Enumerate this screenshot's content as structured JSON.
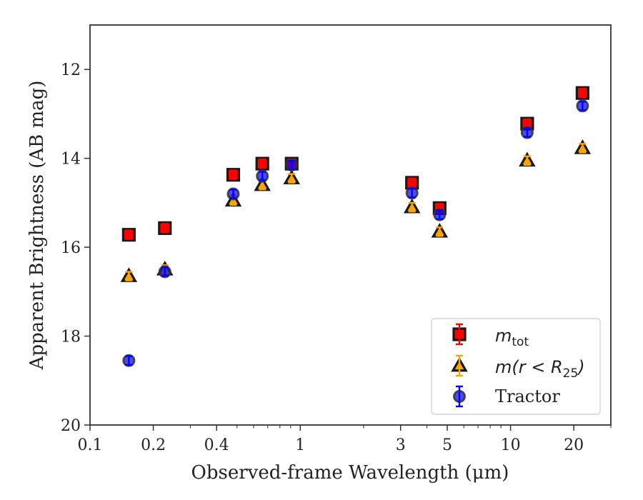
{
  "chart_data": {
    "type": "scatter",
    "title": "",
    "xlabel": "Observed-frame Wavelength (μm)",
    "ylabel": "Apparent Brightness (AB mag)",
    "xscale": "log",
    "xlim": [
      0.1,
      30
    ],
    "ylim": [
      20,
      11
    ],
    "y_inverted": true,
    "x_ticks": [
      0.1,
      0.2,
      0.4,
      1,
      3,
      5,
      10,
      20
    ],
    "x_tick_labels": [
      "0.1",
      "0.2",
      "0.4",
      "1",
      "3",
      "5",
      "10",
      "20"
    ],
    "y_ticks": [
      12,
      14,
      16,
      18,
      20
    ],
    "y_tick_labels": [
      "12",
      "14",
      "16",
      "18",
      "20"
    ],
    "grid": false,
    "legend_position": "lower-right",
    "series": [
      {
        "name": "m_tot",
        "marker": "square",
        "color": "#ff0000",
        "edge_color": "#1a1a1a",
        "errorbar_color": "#ff0000",
        "x": [
          0.153,
          0.227,
          0.48,
          0.66,
          0.91,
          3.4,
          4.6,
          12.0,
          22.0
        ],
        "y": [
          15.72,
          15.57,
          14.37,
          14.12,
          14.12,
          14.55,
          15.12,
          13.22,
          12.53
        ]
      },
      {
        "name": "m(r < R25)",
        "marker": "triangle",
        "color": "#ffa500",
        "edge_color": "#1a1a1a",
        "errorbar_color": "#ffa500",
        "x": [
          0.153,
          0.227,
          0.48,
          0.66,
          0.91,
          3.4,
          4.6,
          12.0,
          22.0
        ],
        "y": [
          16.65,
          16.5,
          14.95,
          14.6,
          14.45,
          15.1,
          15.65,
          14.05,
          13.77
        ]
      },
      {
        "name": "Tractor",
        "marker": "circle",
        "color": "#0000ff",
        "edge_color": "#333333",
        "errorbar_color": "#0000ff",
        "alpha": 0.7,
        "x": [
          0.153,
          0.227,
          0.48,
          0.66,
          0.91,
          3.4,
          4.6,
          12.0,
          22.0
        ],
        "y": [
          18.55,
          16.55,
          14.8,
          14.4,
          14.15,
          14.78,
          15.27,
          13.42,
          12.82
        ]
      }
    ]
  },
  "legend": {
    "entry_1": {
      "base": "m",
      "subscript": "tot"
    },
    "entry_2": {
      "prefix": "m(r < R",
      "subscript": "25",
      "suffix": ")"
    },
    "entry_3": {
      "label": "Tractor"
    }
  }
}
